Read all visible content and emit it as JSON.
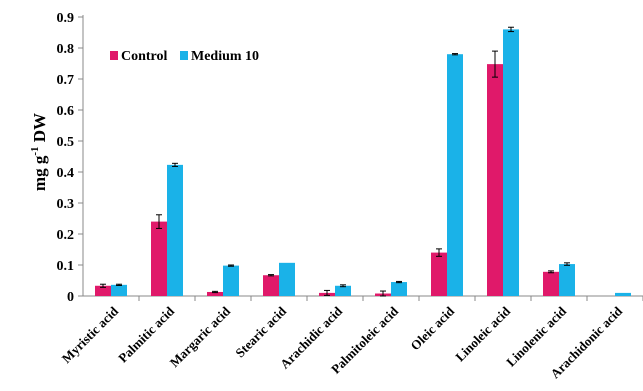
{
  "chart_data": {
    "type": "bar",
    "title": "",
    "xlabel": "",
    "ylabel": "mg g-1 DW",
    "ylabel_parts": {
      "base": "mg g",
      "sup": "-1",
      "tail": " DW"
    },
    "ylim": [
      0,
      0.9
    ],
    "yticks": [
      "0",
      "0.1",
      "0.2",
      "0.3",
      "0.4",
      "0.5",
      "0.6",
      "0.7",
      "0.8",
      "0.9"
    ],
    "grid": false,
    "legend_position": "top-left",
    "categories": [
      "Myristic acid",
      "Palmitic acid",
      "Margaric acid",
      "Stearic acid",
      "Arachidic acid",
      "Palmitoleic acid",
      "Oleic acid",
      "Linoleic acid",
      "Linolenic acid",
      "Arachidonic acid"
    ],
    "series": [
      {
        "name": "Control",
        "color": "#e0196a",
        "values": [
          0.033,
          0.24,
          0.013,
          0.067,
          0.01,
          0.008,
          0.14,
          0.748,
          0.078,
          0.0
        ],
        "errors": [
          0.005,
          0.022,
          0.002,
          0.002,
          0.008,
          0.008,
          0.012,
          0.042,
          0.003,
          0.0
        ]
      },
      {
        "name": "Medium 10",
        "color": "#1ab2e8",
        "values": [
          0.036,
          0.423,
          0.098,
          0.107,
          0.033,
          0.045,
          0.78,
          0.86,
          0.103,
          0.01
        ],
        "errors": [
          0.002,
          0.005,
          0.002,
          0.0,
          0.003,
          0.002,
          0.002,
          0.007,
          0.004,
          0.0
        ]
      }
    ]
  }
}
